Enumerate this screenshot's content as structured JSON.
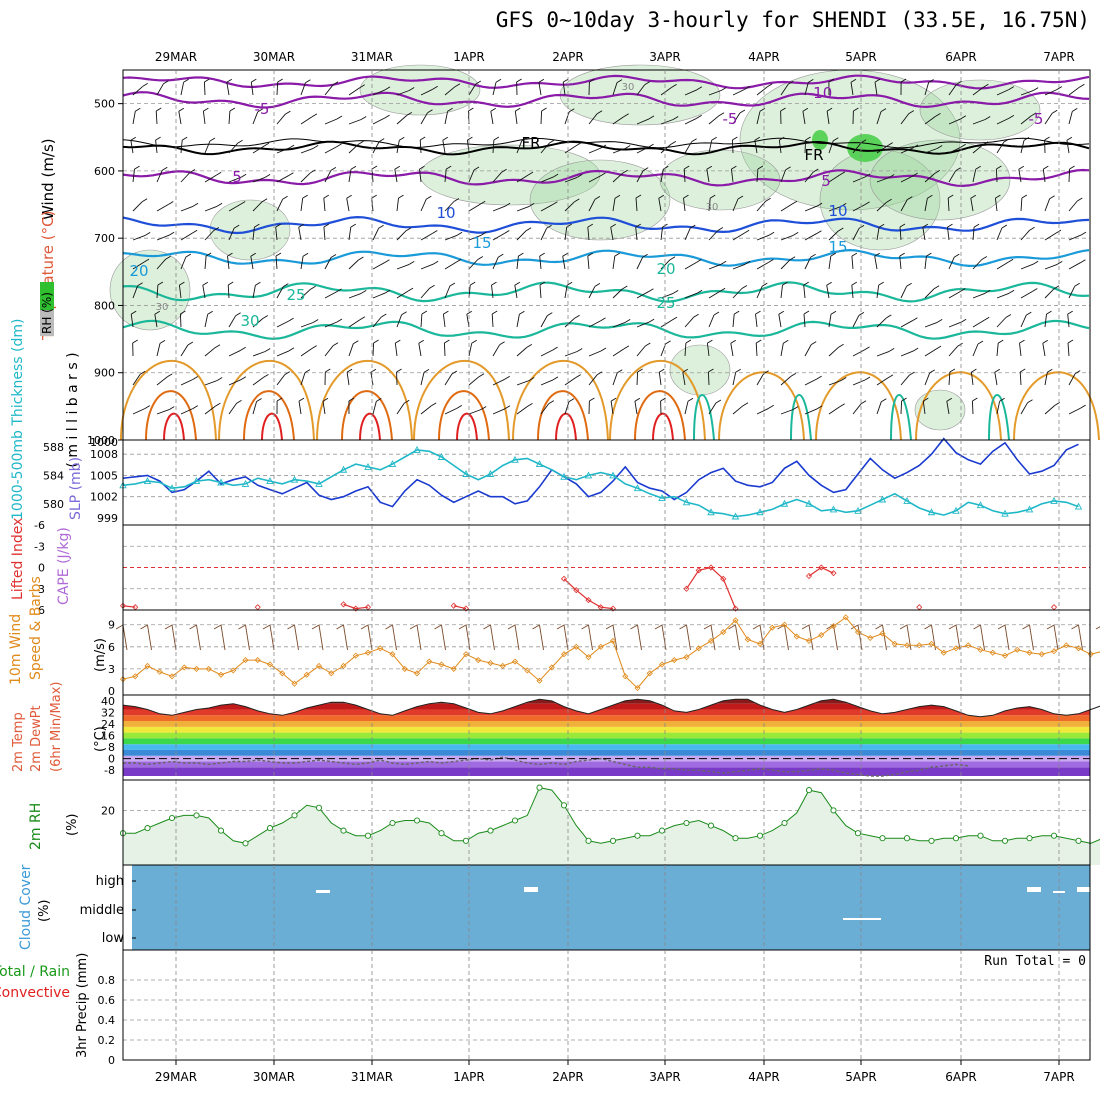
{
  "title": "GFS 0~10day 3-hourly for SHENDI (33.5E, 16.75N)",
  "dates": [
    "29MAR",
    "30MAR",
    "31MAR",
    "1APR",
    "2APR",
    "3APR",
    "4APR",
    "5APR",
    "6APR",
    "7APR"
  ],
  "colors": {
    "purple": "#8a1aa8",
    "blue": "#1f4fd8",
    "lightblue": "#1a9ad8",
    "teal": "#1ab79a",
    "orange": "#e39a2a",
    "darkorange": "#e06a10",
    "red": "#e02020",
    "rh_green": "#9bd59b",
    "slp": "#1a3ad0",
    "thick": "#20b8c8",
    "li": "#e03030",
    "wind10": "#e08a1a",
    "rh2m": "#1a8a1a",
    "cloud": "#6aaed6"
  },
  "panels": {
    "upper": {
      "ylabel_wind": "Wind (m/s)",
      "ylabel_temp": "Temperature (°C)",
      "ylabel_unit": "( m i l l i b a r s )",
      "rh_label": "RH (%)",
      "yticks": [
        "500",
        "600",
        "700",
        "800",
        "900",
        "1000"
      ],
      "contour_labels": [
        "-10",
        "-5",
        "-5",
        "-5",
        "5",
        "5",
        "FR",
        "FR",
        "10",
        "10",
        "15",
        "15",
        "20",
        "20",
        "25",
        "25",
        "30",
        "30",
        "30",
        "30"
      ]
    },
    "slp": {
      "ylabel_thick": "1000-500mb Thickness (dm)",
      "ylabel_slp": "SLP (mb)",
      "left_ticks": [
        "588",
        "584",
        "580"
      ],
      "right_ticks": [
        "1008",
        "1005",
        "1002",
        "999"
      ]
    },
    "li": {
      "ylabel_li": "Lifted Index",
      "ylabel_cape": "CAPE (J/kg)",
      "yticks": [
        "-6",
        "-3",
        "0",
        "3",
        "6"
      ]
    },
    "wind10": {
      "ylabel1": "10m Wind",
      "ylabel2": "Speed & Barbs",
      "unit": "(m/s)",
      "yticks": [
        "9",
        "6",
        "3",
        "0"
      ]
    },
    "temp2m": {
      "ylabel1": "2m Temp",
      "ylabel2": "2m DewPt",
      "ylabel3": "(6hr Min/Max)",
      "unit": "(°C)",
      "yticks": [
        "40",
        "32",
        "24",
        "16",
        "8",
        "0",
        "-8"
      ]
    },
    "rh2m": {
      "ylabel": "2m RH",
      "unit": "(%)",
      "yticks": [
        "20"
      ]
    },
    "cloud": {
      "ylabel": "Cloud Cover",
      "unit": "(%)",
      "levels": [
        "high",
        "middle",
        "low"
      ]
    },
    "precip": {
      "ylabel1": "Total / Rain",
      "ylabel2": "Convective",
      "ylabel3": "3hr Precip (mm)",
      "run_total": "Run Total = 0",
      "yticks": [
        "0.8",
        "0.6",
        "0.4",
        "0.2",
        "0"
      ]
    }
  },
  "chart_data": [
    {
      "type": "line",
      "name": "SLP",
      "x_label": "",
      "series": [
        {
          "name": "SLP (mb)",
          "values": [
            1004.6,
            1004.8,
            1005.0,
            1004.2,
            1002.6,
            1003.0,
            1004.2,
            1005.6,
            1003.8,
            1004.4,
            1004.8,
            1003.6,
            1003.0,
            1002.4,
            1003.2,
            1004.0,
            1002.2,
            1001.6,
            1002.0,
            1002.8,
            1003.4,
            1001.2,
            1000.6,
            1002.8,
            1004.4,
            1003.6,
            1002.2,
            1001.2,
            1002.0,
            1002.8,
            1002.0,
            1002.0,
            1001.0,
            1001.4,
            1003.4,
            1005.8,
            1004.8,
            1003.8,
            1002.0,
            1002.6,
            1004.2,
            1006.2,
            1004.0,
            1003.2,
            1002.8,
            1001.6,
            1002.6,
            1004.4,
            1005.4,
            1006.0,
            1004.2,
            1003.6,
            1003.4,
            1004.0,
            1006.0,
            1007.0,
            1005.0,
            1003.6,
            1002.6,
            1003.0,
            1005.2,
            1007.4,
            1005.8,
            1004.6,
            1005.4,
            1006.4,
            1008.0,
            1010.2,
            1008.2,
            1007.2,
            1006.6,
            1008.4,
            1009.6,
            1007.2,
            1005.2,
            1005.6,
            1006.4,
            1008.6,
            1009.4
          ]
        },
        {
          "name": "1000-500mb Thickness (dm)",
          "values": [
            582.6,
            582.8,
            583.2,
            583.0,
            582.2,
            582.4,
            583.2,
            583.4,
            583.0,
            582.6,
            582.8,
            583.6,
            583.2,
            582.8,
            583.4,
            583.2,
            582.8,
            583.8,
            584.8,
            585.6,
            585.2,
            584.8,
            585.6,
            586.6,
            587.6,
            587.4,
            586.6,
            585.4,
            584.2,
            583.4,
            584.2,
            585.4,
            586.2,
            586.4,
            585.6,
            584.8,
            583.8,
            583.4,
            584.0,
            584.4,
            584.0,
            582.8,
            582.2,
            581.4,
            580.8,
            581.0,
            580.2,
            579.8,
            578.8,
            578.6,
            578.2,
            578.4,
            578.8,
            579.2,
            580.0,
            580.6,
            580.0,
            579.0,
            579.2,
            578.8,
            579.0,
            579.8,
            580.6,
            581.4,
            580.4,
            579.4,
            578.8,
            578.4,
            579.0,
            580.2,
            579.8,
            579.0,
            578.6,
            578.8,
            579.2,
            580.0,
            580.4,
            580.2,
            579.6
          ]
        }
      ]
    },
    {
      "type": "line",
      "name": "Lifted Index",
      "series": [
        {
          "name": "Lifted Index",
          "values": [
            5.4,
            5.6,
            6.0,
            6.0,
            6.0,
            6.0,
            6.0,
            6.0,
            6.0,
            6.0,
            6.0,
            5.6,
            6.0,
            6.0,
            6.0,
            6.0,
            6.0,
            6.0,
            5.2,
            5.8,
            5.6,
            6.0,
            6.0,
            6.0,
            6.0,
            6.0,
            6.0,
            5.4,
            5.8,
            6.0,
            6.0,
            6.0,
            6.0,
            6.0,
            6.0,
            6.0,
            1.6,
            3.2,
            4.6,
            5.6,
            5.8,
            6.0,
            6.0,
            6.0,
            6.0,
            6.0,
            3.0,
            0.4,
            0.0,
            1.6,
            5.8,
            6.0,
            6.0,
            6.0,
            6.0,
            6.0,
            1.2,
            0.0,
            0.8,
            6.0,
            6.0,
            6.0,
            6.0,
            6.0,
            6.0,
            5.6,
            6.0,
            6.0,
            6.0,
            6.0,
            6.0,
            6.0,
            6.0,
            6.0,
            6.0,
            6.0,
            5.6,
            6.0,
            6.0
          ]
        }
      ]
    },
    {
      "type": "line",
      "name": "10m Wind Speed",
      "series": [
        {
          "name": "10m Wind Speed (m/s)",
          "values": [
            1.6,
            2.0,
            3.4,
            2.6,
            2.0,
            3.2,
            3.0,
            3.0,
            2.2,
            2.8,
            4.2,
            4.2,
            3.6,
            2.4,
            1.0,
            2.2,
            3.4,
            2.4,
            3.4,
            4.8,
            5.2,
            5.8,
            5.0,
            3.0,
            2.4,
            4.0,
            3.6,
            3.0,
            5.0,
            4.2,
            3.8,
            3.4,
            4.0,
            2.8,
            1.4,
            3.2,
            5.0,
            6.0,
            4.6,
            6.0,
            6.8,
            2.0,
            0.4,
            2.4,
            3.6,
            4.2,
            4.6,
            5.8,
            6.8,
            8.0,
            9.6,
            7.0,
            6.4,
            8.6,
            9.0,
            7.4,
            6.8,
            7.6,
            8.8,
            10.0,
            8.0,
            7.2,
            7.8,
            6.4,
            6.2,
            6.2,
            6.4,
            5.2,
            5.8,
            6.2,
            5.6,
            5.2,
            4.8,
            5.6,
            5.2,
            5.0,
            5.4,
            6.2,
            5.8,
            5.0,
            5.4,
            4.4,
            4.6,
            5.2,
            6.4,
            5.8
          ]
        }
      ]
    },
    {
      "type": "area",
      "name": "2m Temp",
      "series": [
        {
          "name": "2m Temp (°C)",
          "values": [
            37,
            36,
            34,
            31,
            30,
            32,
            34,
            35,
            37,
            38,
            36,
            33,
            31,
            30,
            32,
            35,
            37,
            39,
            39,
            37,
            34,
            31,
            30,
            33,
            36,
            38,
            39,
            38,
            35,
            32,
            31,
            33,
            36,
            39,
            41,
            40,
            36,
            33,
            31,
            34,
            37,
            40,
            41,
            40,
            37,
            33,
            32,
            34,
            37,
            40,
            41,
            41,
            37,
            34,
            32,
            34,
            37,
            40,
            41,
            39,
            36,
            33,
            31,
            32,
            34,
            36,
            37,
            36,
            33,
            30,
            29,
            30,
            33,
            35,
            36,
            34,
            31,
            30,
            31,
            34,
            37,
            38,
            36,
            33,
            31,
            30,
            32,
            34,
            35
          ]
        },
        {
          "name": "2m DewPt (°C)",
          "values": [
            -3,
            -3,
            -4,
            -3,
            -2,
            -3,
            -3,
            -4,
            -3,
            -2,
            -2,
            -1,
            -2,
            -3,
            -3,
            -2,
            -1,
            -2,
            -3,
            -4,
            -3,
            -1,
            -3,
            -4,
            -3,
            -2,
            -3,
            -2,
            -1,
            0,
            -1,
            1,
            -1,
            -3,
            -4,
            -3,
            -4,
            -2,
            -1,
            0,
            -2,
            -4,
            -6,
            -6,
            -7,
            -7,
            -8,
            -8,
            -9,
            -10,
            -9,
            -8,
            -7,
            -8,
            -9,
            -9,
            -8,
            -7,
            -8,
            -10,
            -11,
            -12,
            -12,
            -11,
            -9,
            -8,
            -6,
            -5,
            -4,
            -5
          ]
        }
      ]
    },
    {
      "type": "area",
      "name": "2m RH",
      "series": [
        {
          "name": "2m RH (%)",
          "values": [
            11,
            11,
            13,
            15,
            17,
            18,
            18,
            17,
            12,
            8,
            7,
            10,
            13,
            15,
            18,
            22,
            21,
            15,
            12,
            10,
            10,
            12,
            15,
            16,
            16,
            15,
            11,
            8,
            8,
            11,
            12,
            14,
            16,
            18,
            29,
            28,
            22,
            14,
            8,
            7,
            8,
            9,
            10,
            10,
            12,
            14,
            15,
            16,
            14,
            12,
            9,
            9,
            10,
            12,
            15,
            19,
            28,
            27,
            20,
            14,
            11,
            10,
            9,
            9,
            9,
            8,
            8,
            9,
            9,
            10,
            10,
            8,
            8,
            9,
            9,
            10,
            10,
            9,
            8,
            7,
            9,
            14,
            23,
            13
          ]
        }
      ]
    },
    {
      "type": "table",
      "name": "Cloud Cover",
      "levels": [
        "high",
        "middle",
        "low"
      ],
      "note": "Solid blue background; small white gaps near 30MAR high, 1APR-2APR high, 5APR middle, 7APR high"
    },
    {
      "type": "bar",
      "name": "3hr Precip",
      "values": [],
      "ylim": [
        0,
        1.0
      ]
    }
  ]
}
